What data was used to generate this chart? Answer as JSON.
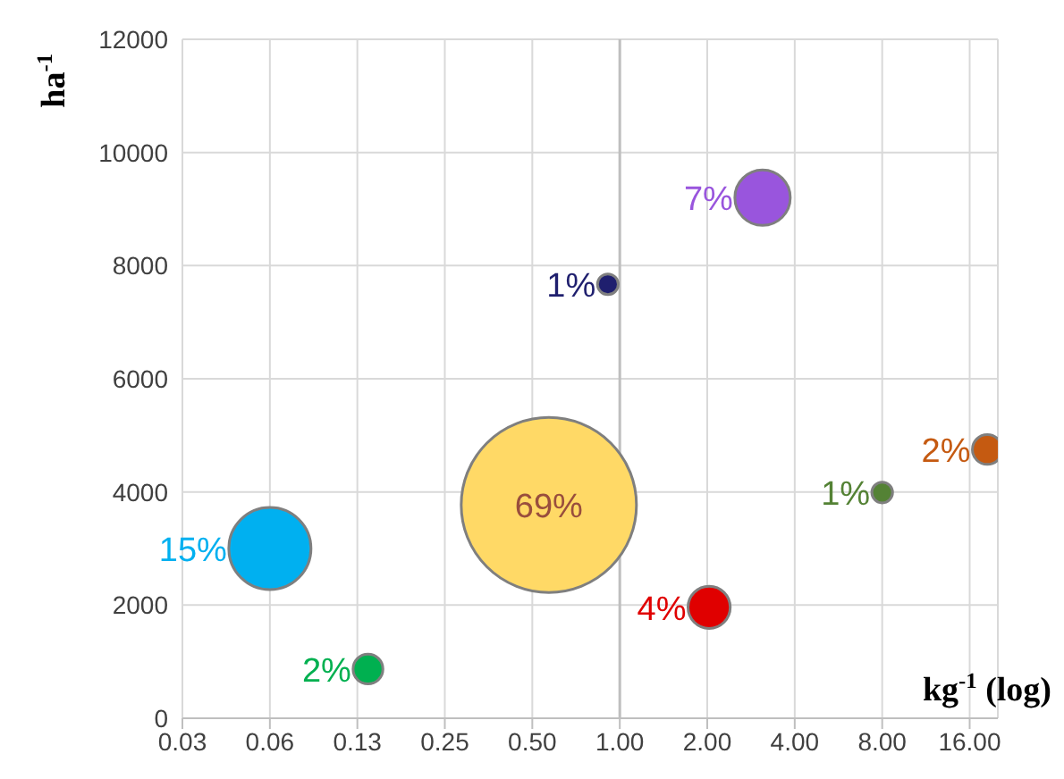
{
  "chart_data": {
    "type": "bubble",
    "xlabel": "kg$^{-1}$ (log)",
    "ylabel": "ha$^{-1}$",
    "log": "x",
    "grid": true,
    "xlim": [
      0.03125,
      20
    ],
    "xticks": [
      {
        "value": 0.03125,
        "label": "0.03"
      },
      {
        "value": 0.0625,
        "label": "0.06"
      },
      {
        "value": 0.125,
        "label": "0.13"
      },
      {
        "value": 0.25,
        "label": "0.25"
      },
      {
        "value": 0.5,
        "label": "0.50"
      },
      {
        "value": 1,
        "label": "1.00"
      },
      {
        "value": 2,
        "label": "2.00"
      },
      {
        "value": 4,
        "label": "4.00"
      },
      {
        "value": 8,
        "label": "8.00"
      },
      {
        "value": 16,
        "label": "16.00"
      }
    ],
    "ylim": [
      0,
      12000
    ],
    "yticks": [
      0,
      2000,
      4000,
      6000,
      8000,
      10000,
      12000
    ],
    "ref_lines": [
      {
        "axis": "x",
        "value": 1,
        "color": "#bfbfbf"
      }
    ],
    "annotations": [
      {
        "text": "69%",
        "x": 0.57,
        "y": 3770
      },
      {
        "text": "15%",
        "x": 0.0625,
        "y": 3000
      },
      {
        "text": "7%",
        "x": 3.1,
        "y": 9200
      },
      {
        "text": "4%",
        "x": 2.03,
        "y": 1960
      },
      {
        "text": "2%",
        "x": 0.136,
        "y": 870
      },
      {
        "text": "2%",
        "x": 18.4,
        "y": 4750
      },
      {
        "text": "1%",
        "x": 0.91,
        "y": 7670
      },
      {
        "text": "1%",
        "x": 8,
        "y": 3990
      }
    ],
    "series": [
      {
        "color": "#ffd966",
        "x": [
          0.57
        ],
        "values": [
          3770
        ],
        "sizes": [
          1
        ]
      },
      {
        "color": "#00b0f0",
        "x": [
          0.0625
        ],
        "values": [
          3000
        ],
        "sizes": [
          0.22
        ]
      },
      {
        "color": "#9955dd",
        "x": [
          3.1
        ],
        "values": [
          9200
        ],
        "sizes": [
          0.1
        ]
      },
      {
        "color": "#e00000",
        "x": [
          2.03
        ],
        "values": [
          1960
        ],
        "sizes": [
          0.058
        ]
      },
      {
        "color": "#00b050",
        "x": [
          0.136
        ],
        "values": [
          870
        ],
        "sizes": [
          0.029
        ]
      },
      {
        "color": "#c55a11",
        "x": [
          18.4
        ],
        "values": [
          4750
        ],
        "sizes": [
          0.029
        ]
      },
      {
        "color": "#1f1f6e",
        "x": [
          0.91
        ],
        "values": [
          7670
        ],
        "sizes": [
          0.014
        ]
      },
      {
        "color": "#548235",
        "x": [
          8
        ],
        "values": [
          3990
        ],
        "sizes": [
          0.014
        ]
      }
    ]
  }
}
